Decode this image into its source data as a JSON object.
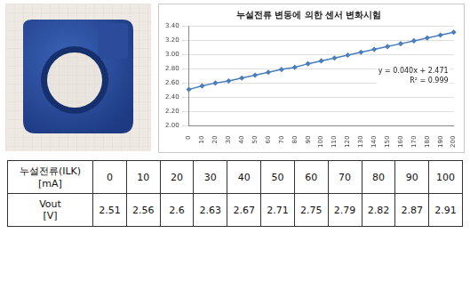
{
  "chart_data": {
    "type": "line",
    "title": "누설전류 변동에 의한 센서 변화시험",
    "categories": [
      "0",
      "10",
      "20",
      "30",
      "40",
      "50",
      "60",
      "70",
      "80",
      "90",
      "100",
      "110",
      "120",
      "130",
      "140",
      "150",
      "160",
      "170",
      "180",
      "190",
      "200"
    ],
    "values": [
      2.51,
      2.56,
      2.6,
      2.63,
      2.67,
      2.71,
      2.75,
      2.79,
      2.82,
      2.87,
      2.91,
      2.95,
      2.99,
      3.03,
      3.07,
      3.11,
      3.15,
      3.19,
      3.23,
      3.27,
      3.31
    ],
    "color": "#4a7ebb",
    "marker": "diamond",
    "ylim": [
      2,
      3.4
    ],
    "yticks": [
      {
        "value": 2,
        "label": "2.00"
      },
      {
        "value": 2.2,
        "label": "2.20"
      },
      {
        "value": 2.4,
        "label": "2.40"
      },
      {
        "value": 2.6,
        "label": "2.60"
      },
      {
        "value": 2.8,
        "label": "2.80"
      },
      {
        "value": 3,
        "label": "3.00"
      },
      {
        "value": 3.2,
        "label": "3.20"
      },
      {
        "value": 3.4,
        "label": "3.40"
      }
    ],
    "grid": true,
    "annotations": [
      "y = 0.040x + 2.471",
      "R² = 0.999"
    ]
  },
  "table": {
    "rows": [
      [
        [
          "누설전류(ILK)",
          "[mA]"
        ],
        0,
        10,
        20,
        30,
        40,
        50,
        60,
        70,
        80,
        90,
        100
      ],
      [
        [
          "Vout",
          "[V]"
        ],
        2.51,
        2.56,
        2.6,
        2.63,
        2.67,
        2.71,
        2.75,
        2.79,
        2.82,
        2.87,
        2.91
      ]
    ]
  }
}
